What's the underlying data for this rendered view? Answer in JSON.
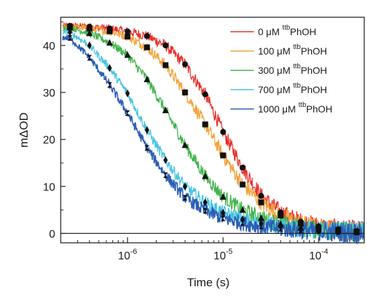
{
  "chart_data": {
    "type": "line",
    "title": "",
    "xlabel": "Time (s)",
    "ylabel": "mΔOD",
    "xscale": "log",
    "xlim": [
      2e-07,
      0.0003
    ],
    "ylim": [
      -2,
      46
    ],
    "x_ticks": [
      {
        "value": 1e-06,
        "label": "10-6",
        "base": "10",
        "exp": "-6"
      },
      {
        "value": 1e-05,
        "label": "10-5",
        "base": "10",
        "exp": "-5"
      },
      {
        "value": 0.0001,
        "label": "10-4",
        "base": "10",
        "exp": "-4"
      }
    ],
    "y_ticks": [
      0,
      10,
      20,
      30,
      40
    ],
    "zero_line": true,
    "grid": false,
    "legend_position": "top-right",
    "series": [
      {
        "name": "0 μM ttbPhOH",
        "conc": "0 μM ",
        "sup": "ttb",
        "suffix": "PhOH",
        "color": "#e8302a",
        "marker": "circle",
        "x": [
          2.5e-07,
          4e-07,
          6.5e-07,
          1e-06,
          1.6e-06,
          2.5e-06,
          4e-06,
          6.5e-06,
          1e-05,
          1.6e-05,
          2.5e-05,
          4e-05,
          6.5e-05,
          0.0001,
          0.00016,
          0.00025
        ],
        "y": [
          44.2,
          44.0,
          43.6,
          43.0,
          42.0,
          40.0,
          36.0,
          29.6,
          21.6,
          14.0,
          8.0,
          4.5,
          2.5,
          1.5,
          0.9,
          0.5
        ]
      },
      {
        "name": "100 μM ttbPhOH",
        "conc": "100 μM ",
        "sup": "ttb",
        "suffix": "PhOH",
        "color": "#f2a23a",
        "marker": "square",
        "x": [
          2.5e-07,
          4e-07,
          6.5e-07,
          1e-06,
          1.6e-06,
          2.5e-06,
          4e-06,
          6.5e-06,
          1e-05,
          1.6e-05,
          2.5e-05,
          4e-05,
          6.5e-05,
          0.0001,
          0.00016,
          0.00025
        ],
        "y": [
          44.0,
          43.6,
          43.0,
          41.9,
          39.6,
          35.8,
          30.0,
          23.2,
          16.6,
          10.4,
          6.6,
          3.8,
          2.1,
          1.2,
          0.7,
          0.4
        ]
      },
      {
        "name": "300 μM ttbPhOH",
        "conc": "300 μM ",
        "sup": "ttb",
        "suffix": "PhOH",
        "color": "#3fb34a",
        "marker": "triangle",
        "x": [
          2.5e-07,
          4e-07,
          6.5e-07,
          1e-06,
          1.6e-06,
          2.5e-06,
          4e-06,
          6.5e-06,
          1e-05,
          1.6e-05,
          2.5e-05,
          4e-05,
          6.5e-05,
          0.0001,
          0.00016,
          0.00025
        ],
        "y": [
          43.8,
          42.6,
          40.6,
          38.0,
          32.8,
          26.2,
          18.8,
          12.2,
          7.8,
          5.0,
          3.3,
          2.0,
          1.2,
          0.8,
          0.5,
          0.3
        ]
      },
      {
        "name": "700 μM ttbPhOH",
        "conc": "700 μM ",
        "sup": "ttb",
        "suffix": "PhOH",
        "color": "#45c3e3",
        "marker": "diamond",
        "x": [
          2.5e-07,
          4e-07,
          6.5e-07,
          1e-06,
          1.6e-06,
          2.5e-06,
          4e-06,
          6.5e-06,
          1e-05,
          1.6e-05,
          2.5e-05,
          4e-05,
          6.5e-05,
          0.0001,
          0.00016,
          0.00025
        ],
        "y": [
          42.8,
          40.0,
          35.2,
          29.8,
          22.0,
          15.6,
          10.0,
          6.6,
          4.4,
          3.0,
          2.1,
          1.4,
          0.9,
          0.6,
          0.4,
          0.3
        ]
      },
      {
        "name": "1000 μM ttbPhOH",
        "conc": "1000 μM ",
        "sup": "ttb",
        "suffix": "PhOH",
        "color": "#2a5fb5",
        "marker": "hourglass",
        "x": [
          2.5e-07,
          4e-07,
          6.5e-07,
          1e-06,
          1.6e-06,
          2.5e-06,
          4e-06,
          6.5e-06,
          1e-05,
          1.6e-05,
          2.5e-05,
          4e-05,
          6.5e-05,
          0.0001,
          0.00016,
          0.00025
        ],
        "y": [
          41.6,
          37.4,
          31.6,
          25.6,
          18.2,
          12.4,
          7.6,
          4.8,
          3.2,
          2.2,
          1.5,
          1.0,
          0.7,
          0.5,
          0.3,
          0.2
        ]
      }
    ]
  }
}
